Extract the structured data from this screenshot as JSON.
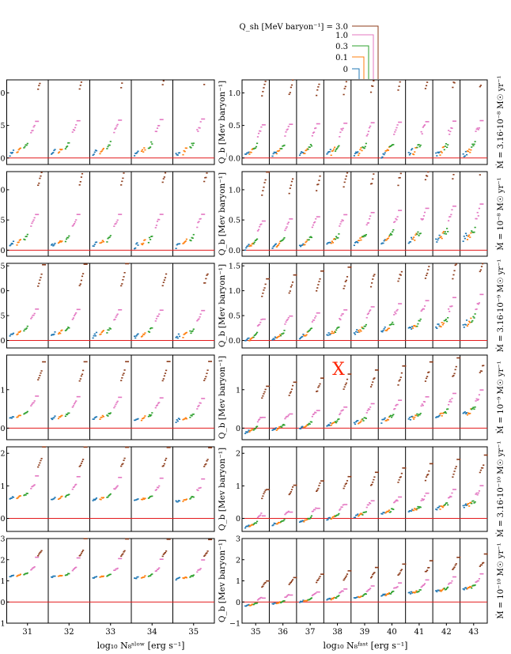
{
  "legend": {
    "entries": [
      {
        "label": "Q_sh [MeV baryon⁻¹] = 3.0",
        "color": "#8c3b1a"
      },
      {
        "label": "1.0",
        "color": "#e377c2"
      },
      {
        "label": "0.3",
        "color": "#2ca02c"
      },
      {
        "label": "0.1",
        "color": "#ff7f0e"
      },
      {
        "label": "0",
        "color": "#1f77b4"
      }
    ]
  },
  "annotation": "X",
  "chart_data": {
    "type": "scatter",
    "ylabel": "Q_b [Mev baryon⁻¹]",
    "xlabel_left": "log₁₀ N₈ˢˡᵒʷ [erg s⁻¹]",
    "xlabel_right": "log₁₀ N₈ᶠᵃˢᵗ [erg s⁻¹]",
    "x_ticks_left": [
      "31",
      "32",
      "33",
      "34",
      "35"
    ],
    "x_ticks_right": [
      "35",
      "36",
      "37",
      "38",
      "39",
      "40",
      "41",
      "42",
      "43"
    ],
    "rows": [
      {
        "mdot_label": "Ṁ = 3.16·10⁻⁸ M☉ yr⁻¹",
        "ylim": [
          -0.1,
          1.2
        ],
        "yticks": [
          "0.0",
          "0.5",
          "1.0"
        ],
        "ytick_values": [
          0,
          0.5,
          1.0
        ],
        "start_left": 0.05,
        "start_right": 0.04,
        "slope": 0.0
      },
      {
        "mdot_label": "Ṁ = 10⁻⁸ M☉ yr⁻¹",
        "ylim": [
          -0.1,
          1.3
        ],
        "yticks": [
          "0.0",
          "0.5",
          "1.0"
        ],
        "ytick_values": [
          0,
          0.5,
          1.0
        ],
        "start_left": 0.07,
        "start_right": 0.02,
        "slope": 0.02
      },
      {
        "mdot_label": "Ṁ = 3.16·10⁻⁹ M☉ yr⁻¹",
        "ylim": [
          -0.15,
          1.55
        ],
        "yticks": [
          "0.0",
          "0.5",
          "1.0",
          "1.5"
        ],
        "ytick_values": [
          0,
          0.5,
          1.0,
          1.5
        ],
        "start_left": 0.1,
        "start_right": -0.02,
        "slope": 0.04
      },
      {
        "mdot_label": "Ṁ = 10⁻⁹ M☉ yr⁻¹",
        "ylim": [
          -0.3,
          1.9
        ],
        "yticks": [
          "0",
          "1"
        ],
        "ytick_values": [
          0,
          1
        ],
        "start_left": 0.25,
        "start_right": -0.13,
        "slope": 0.06
      },
      {
        "mdot_label": "Ṁ = 3.16·10⁻¹⁰ M☉ yr⁻¹",
        "ylim": [
          -0.4,
          2.2
        ],
        "yticks": [
          "0",
          "1",
          "2"
        ],
        "ytick_values": [
          0,
          1,
          2
        ],
        "start_left": 0.6,
        "start_right": -0.28,
        "slope": 0.08
      },
      {
        "mdot_label": "Ṁ = 10⁻¹⁰ M☉ yr⁻¹",
        "ylim": [
          -1,
          3
        ],
        "yticks": [
          "−1",
          "0",
          "1",
          "2",
          "3"
        ],
        "ytick_values": [
          -1,
          0,
          1,
          2,
          3
        ],
        "start_left": 1.2,
        "start_right": -0.2,
        "slope": 0.1
      }
    ],
    "series": [
      {
        "name": "0",
        "color": "#1f77b4",
        "q": 0
      },
      {
        "name": "0.1",
        "color": "#ff7f0e",
        "q": 0.1
      },
      {
        "name": "0.3",
        "color": "#2ca02c",
        "q": 0.3
      },
      {
        "name": "1.0",
        "color": "#e377c2",
        "q": 1.0
      },
      {
        "name": "3.0",
        "color": "#8c3b1a",
        "q": 3.0
      }
    ]
  }
}
